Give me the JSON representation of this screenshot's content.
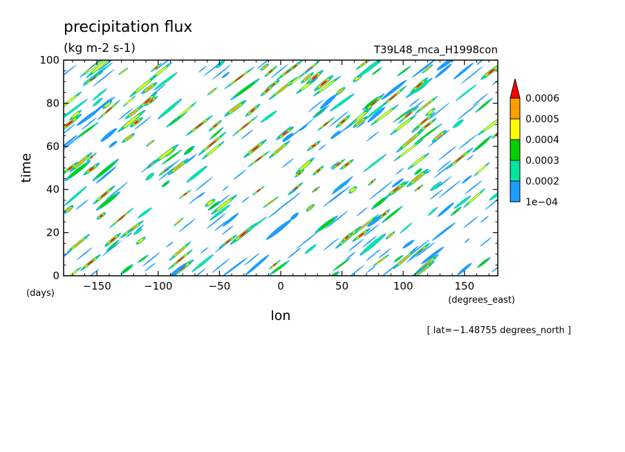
{
  "chart_data": {
    "type": "heatmap",
    "title": "precipitation flux",
    "units": "(kg m-2 s-1)",
    "experiment": "T39L48_mca_H1998con",
    "xlabel": "lon",
    "xunits": "(degrees_east)",
    "ylabel": "time",
    "yunits": "(days)",
    "xlim": [
      -177.19,
      177.19
    ],
    "ylim": [
      0,
      100
    ],
    "xticks": [
      -150,
      -100,
      -50,
      0,
      50,
      100,
      150
    ],
    "xtick_labels": [
      "−150",
      "−100",
      "−50",
      "0",
      "50",
      "100",
      "150"
    ],
    "yticks": [
      0,
      20,
      40,
      60,
      80,
      100
    ],
    "ytick_labels": [
      "0",
      "20",
      "40",
      "60",
      "80",
      "100"
    ],
    "footnote": "[ lat=−1.48755 degrees_north ]",
    "contour_levels": [
      0.0001,
      0.0002,
      0.0003,
      0.0004,
      0.0005,
      0.0006
    ],
    "colorbar_labels": [
      "1e−04",
      "0.0002",
      "0.0003",
      "0.0004",
      "0.0005",
      "0.0006"
    ],
    "colorbar_colors": [
      "#1e9bff",
      "#00e6a0",
      "#00d200",
      "#ffff00",
      "#ffa000",
      "#ff0000"
    ],
    "colorbar_extend": "max",
    "colorbar_placement": "right",
    "grid": false,
    "pattern": {
      "description_hidden": true,
      "streak_slope_deg_per_day": 2.2,
      "streak_count": 230,
      "seed": 1998
    }
  }
}
